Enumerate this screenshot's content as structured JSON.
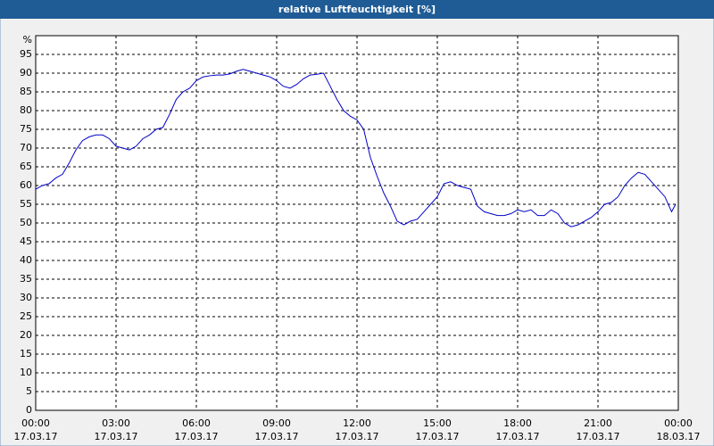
{
  "chart_data": {
    "type": "line",
    "title": "relative Luftfeuchtigkeit [%]",
    "y_label": "%",
    "x": [
      0,
      0.25,
      0.5,
      0.75,
      1,
      1.25,
      1.5,
      1.75,
      2,
      2.25,
      2.5,
      2.75,
      3,
      3.25,
      3.5,
      3.75,
      4,
      4.25,
      4.5,
      4.75,
      5,
      5.25,
      5.5,
      5.75,
      6,
      6.25,
      6.5,
      6.75,
      7,
      7.25,
      7.5,
      7.75,
      8,
      8.25,
      8.5,
      8.75,
      9,
      9.25,
      9.5,
      9.75,
      10,
      10.25,
      10.5,
      10.75,
      11,
      11.25,
      11.5,
      11.75,
      12,
      12.25,
      12.5,
      12.75,
      13,
      13.25,
      13.5,
      13.75,
      14,
      14.25,
      14.5,
      14.75,
      15,
      15.25,
      15.5,
      15.75,
      16,
      16.25,
      16.5,
      16.75,
      17,
      17.25,
      17.5,
      17.75,
      18,
      18.25,
      18.5,
      18.75,
      19,
      19.25,
      19.5,
      19.75,
      20,
      20.25,
      20.5,
      20.75,
      21,
      21.25,
      21.5,
      21.75,
      22,
      22.25,
      22.5,
      22.75,
      23,
      23.25,
      23.5,
      23.75,
      23.9
    ],
    "series": [
      {
        "name": "relative Luftfeuchtigkeit",
        "color": "#0000c8",
        "values": [
          59,
          60,
          60.5,
          62,
          63,
          66,
          69.5,
          72,
          73,
          73.5,
          73.5,
          72.5,
          70.5,
          70,
          69.5,
          70.5,
          72.5,
          73.5,
          75,
          75.5,
          79,
          83,
          85,
          86,
          88,
          89,
          89.3,
          89.5,
          89.5,
          89.8,
          90.5,
          91,
          90.5,
          90,
          89.5,
          89,
          88,
          86.5,
          86,
          87,
          88.5,
          89.5,
          89.7,
          90,
          86.5,
          83,
          80,
          78.5,
          77.5,
          75,
          67.5,
          62.5,
          58,
          54.5,
          50.5,
          49.5,
          50.5,
          51,
          53,
          55,
          57,
          60.5,
          61,
          60,
          59.5,
          59,
          54.5,
          53,
          52.5,
          52,
          52,
          52.5,
          53.5,
          53,
          53.5,
          52,
          52,
          53.5,
          52.5,
          50,
          49,
          49.5,
          50.5,
          51.5,
          53,
          55,
          55.5,
          57,
          60,
          62,
          63.5,
          63,
          61,
          59,
          57,
          53,
          55
        ]
      }
    ],
    "xlim": [
      0,
      24
    ],
    "xticks": [
      {
        "value": 0,
        "label": "00:00",
        "date": "17.03.17"
      },
      {
        "value": 3,
        "label": "03:00",
        "date": "17.03.17"
      },
      {
        "value": 6,
        "label": "06:00",
        "date": "17.03.17"
      },
      {
        "value": 9,
        "label": "09:00",
        "date": "17.03.17"
      },
      {
        "value": 12,
        "label": "12:00",
        "date": "17.03.17"
      },
      {
        "value": 15,
        "label": "15:00",
        "date": "17.03.17"
      },
      {
        "value": 18,
        "label": "18:00",
        "date": "17.03.17"
      },
      {
        "value": 21,
        "label": "21:00",
        "date": "17.03.17"
      },
      {
        "value": 24,
        "label": "00:00",
        "date": "18.03.17"
      }
    ],
    "ylim": [
      0,
      100
    ],
    "yticks": [
      0,
      5,
      10,
      15,
      20,
      25,
      30,
      35,
      40,
      45,
      50,
      55,
      60,
      65,
      70,
      75,
      80,
      85,
      90,
      95
    ],
    "grid": true
  }
}
